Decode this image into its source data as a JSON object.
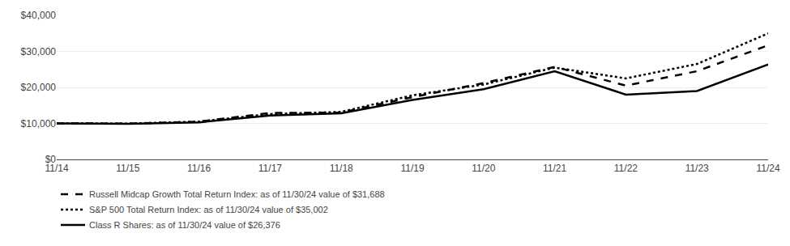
{
  "chart_data": {
    "type": "line",
    "categories": [
      "11/14",
      "11/15",
      "11/16",
      "11/17",
      "11/18",
      "11/19",
      "11/20",
      "11/21",
      "11/22",
      "11/23",
      "11/24"
    ],
    "series": [
      {
        "name": "Russell Midcap Growth Total Return Index: as of 11/30/24 value of $31,688",
        "color": "#000000",
        "line_style": "dashed",
        "values": [
          10000,
          9950,
          10500,
          12900,
          13000,
          17300,
          21200,
          25700,
          20500,
          24500,
          31688
        ]
      },
      {
        "name": "S&P 500 Total Return Index: as of 11/30/24 value of $35,002",
        "color": "#000000",
        "line_style": "dotted",
        "values": [
          10000,
          9950,
          10500,
          12600,
          13200,
          17800,
          20800,
          25500,
          22500,
          26500,
          35002
        ]
      },
      {
        "name": "Class R Shares: as of 11/30/24 value of $26,376",
        "color": "#000000",
        "line_style": "solid",
        "values": [
          10000,
          9900,
          10300,
          12200,
          12800,
          16500,
          19500,
          24500,
          18000,
          19000,
          26376
        ]
      }
    ],
    "ylim": [
      0,
      40000
    ],
    "yticks": [
      {
        "value": 0,
        "label": "$0"
      },
      {
        "value": 10000,
        "label": "$10,000"
      },
      {
        "value": 20000,
        "label": "$20,000"
      },
      {
        "value": 30000,
        "label": "$30,000"
      },
      {
        "value": 40000,
        "label": "$40,000"
      }
    ],
    "grid": true,
    "legend": "bottom"
  }
}
